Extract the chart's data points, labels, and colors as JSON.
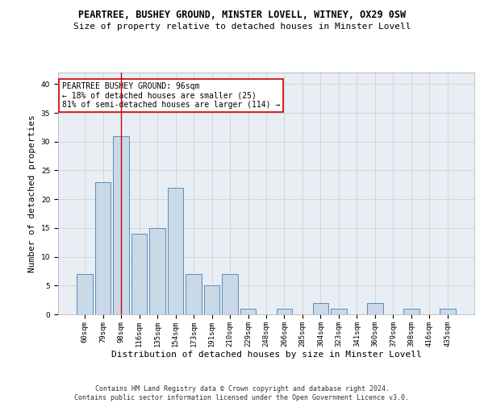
{
  "title": "PEARTREE, BUSHEY GROUND, MINSTER LOVELL, WITNEY, OX29 0SW",
  "subtitle": "Size of property relative to detached houses in Minster Lovell",
  "xlabel": "Distribution of detached houses by size in Minster Lovell",
  "ylabel": "Number of detached properties",
  "categories": [
    "60sqm",
    "79sqm",
    "98sqm",
    "116sqm",
    "135sqm",
    "154sqm",
    "173sqm",
    "191sqm",
    "210sqm",
    "229sqm",
    "248sqm",
    "266sqm",
    "285sqm",
    "304sqm",
    "323sqm",
    "341sqm",
    "360sqm",
    "379sqm",
    "398sqm",
    "416sqm",
    "435sqm"
  ],
  "values": [
    7,
    23,
    31,
    14,
    15,
    22,
    7,
    5,
    7,
    1,
    0,
    1,
    0,
    2,
    1,
    0,
    2,
    0,
    1,
    0,
    1
  ],
  "bar_color": "#c9d9e8",
  "bar_edge_color": "#5b8db8",
  "highlight_bar_index": 2,
  "highlight_line_color": "#cc0000",
  "annotation_text": "PEARTREE BUSHEY GROUND: 96sqm\n← 18% of detached houses are smaller (25)\n81% of semi-detached houses are larger (114) →",
  "annotation_box_color": "#ffffff",
  "annotation_box_edge": "#cc0000",
  "ylim": [
    0,
    42
  ],
  "yticks": [
    0,
    5,
    10,
    15,
    20,
    25,
    30,
    35,
    40
  ],
  "grid_color": "#cccccc",
  "background_color": "#e8eef4",
  "footer_line1": "Contains HM Land Registry data © Crown copyright and database right 2024.",
  "footer_line2": "Contains public sector information licensed under the Open Government Licence v3.0.",
  "title_fontsize": 8.5,
  "subtitle_fontsize": 8,
  "xlabel_fontsize": 8,
  "ylabel_fontsize": 8,
  "tick_fontsize": 6.5,
  "annotation_fontsize": 7,
  "footer_fontsize": 6
}
